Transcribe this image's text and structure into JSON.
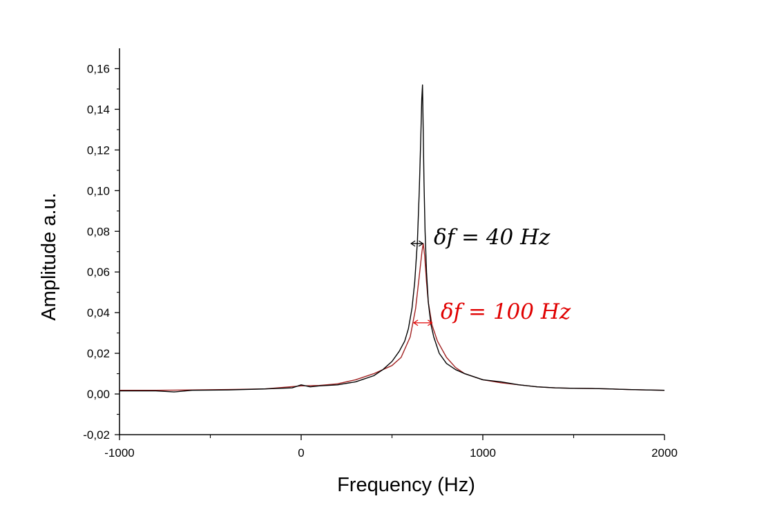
{
  "chart_data": {
    "type": "line",
    "title": "",
    "xlabel": "Frequency (Hz)",
    "ylabel": "Amplitude a.u.",
    "xlim": [
      -1000,
      2000
    ],
    "ylim": [
      -0.02,
      0.17
    ],
    "x_ticks": [
      -1000,
      0,
      1000,
      2000
    ],
    "x_tick_labels": [
      "-1000",
      "0",
      "1000",
      "2000"
    ],
    "y_ticks": [
      -0.02,
      0.0,
      0.02,
      0.04,
      0.06,
      0.08,
      0.1,
      0.12,
      0.14,
      0.16
    ],
    "y_tick_labels": [
      "-0,02",
      "0,00",
      "0,02",
      "0,04",
      "0,06",
      "0,08",
      "0,10",
      "0,12",
      "0,14",
      "0,16"
    ],
    "grid": false,
    "legend": "none",
    "series": [
      {
        "color": "#000000",
        "x": [
          -1000,
          -800,
          -700,
          -600,
          -400,
          -200,
          -50,
          0,
          50,
          100,
          200,
          300,
          400,
          450,
          500,
          540,
          570,
          590,
          610,
          625,
          640,
          650,
          658,
          664,
          668,
          672,
          676,
          682,
          690,
          700,
          715,
          730,
          760,
          800,
          850,
          900,
          1000,
          1100,
          1200,
          1300,
          1400,
          1500,
          1600,
          1700,
          1800,
          1900,
          2000
        ],
        "y": [
          0.0015,
          0.0015,
          0.001,
          0.0018,
          0.002,
          0.0025,
          0.003,
          0.0045,
          0.0035,
          0.004,
          0.0045,
          0.006,
          0.009,
          0.012,
          0.016,
          0.021,
          0.026,
          0.032,
          0.042,
          0.055,
          0.075,
          0.1,
          0.125,
          0.145,
          0.152,
          0.13,
          0.105,
          0.08,
          0.06,
          0.045,
          0.034,
          0.028,
          0.02,
          0.015,
          0.012,
          0.01,
          0.007,
          0.006,
          0.0045,
          0.0035,
          0.003,
          0.0028,
          0.0027,
          0.0025,
          0.0022,
          0.002,
          0.0018
        ]
      },
      {
        "color": "#a02020",
        "x": [
          -1000,
          -800,
          -600,
          -400,
          -200,
          0,
          100,
          200,
          300,
          400,
          500,
          550,
          600,
          630,
          650,
          665,
          672,
          680,
          690,
          700,
          720,
          750,
          800,
          850,
          900,
          1000,
          1100,
          1200,
          1300,
          1400,
          1500,
          1600,
          1700,
          1800,
          1900,
          2000
        ],
        "y": [
          0.0018,
          0.0018,
          0.002,
          0.0022,
          0.0025,
          0.004,
          0.0042,
          0.005,
          0.007,
          0.01,
          0.014,
          0.018,
          0.028,
          0.042,
          0.058,
          0.07,
          0.074,
          0.068,
          0.055,
          0.045,
          0.034,
          0.026,
          0.018,
          0.013,
          0.01,
          0.007,
          0.0055,
          0.0045,
          0.0035,
          0.003,
          0.0028,
          0.0027,
          0.0025,
          0.0022,
          0.002,
          0.0018
        ]
      }
    ],
    "annotations": [
      {
        "text": "δf = 40 Hz",
        "color": "#000000",
        "arrow_x": [
          605,
          670
        ],
        "arrow_y": 0.074
      },
      {
        "text": "δf = 100 Hz",
        "color": "#e00000",
        "arrow_x": [
          620,
          720
        ],
        "arrow_y": 0.035
      }
    ]
  }
}
